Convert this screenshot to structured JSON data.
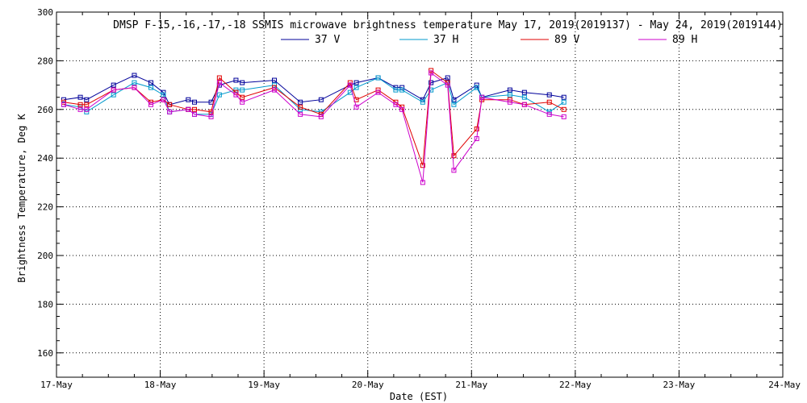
{
  "chart_data": {
    "type": "line",
    "title": "DMSP F-15,-16,-17,-18 SSMIS microwave brightness temperature May 17, 2019(2019137) - May 24, 2019(2019144)",
    "xlabel": "Date (EST)",
    "ylabel": "Brightness Temperature, Deg K",
    "xlim": [
      0,
      7
    ],
    "ylim": [
      150,
      300
    ],
    "grid": true,
    "legend_position": "top-center",
    "x_ticks": [
      {
        "value": 0,
        "label": "17-May"
      },
      {
        "value": 1,
        "label": "18-May"
      },
      {
        "value": 2,
        "label": "19-May"
      },
      {
        "value": 3,
        "label": "20-May"
      },
      {
        "value": 4,
        "label": "21-May"
      },
      {
        "value": 5,
        "label": "22-May"
      },
      {
        "value": 6,
        "label": "23-May"
      },
      {
        "value": 7,
        "label": "24-May"
      }
    ],
    "y_ticks": [
      {
        "value": 160,
        "label": "160"
      },
      {
        "value": 180,
        "label": "180"
      },
      {
        "value": 200,
        "label": "200"
      },
      {
        "value": 220,
        "label": "220"
      },
      {
        "value": 240,
        "label": "240"
      },
      {
        "value": 260,
        "label": "260"
      },
      {
        "value": 280,
        "label": "280"
      },
      {
        "value": 300,
        "label": "300"
      }
    ],
    "x": [
      0.07,
      0.23,
      0.29,
      0.55,
      0.75,
      0.91,
      1.03,
      1.09,
      1.27,
      1.33,
      1.49,
      1.57,
      1.73,
      1.79,
      2.1,
      2.35,
      2.55,
      2.83,
      2.89,
      3.1,
      3.27,
      3.33,
      3.53,
      3.61,
      3.77,
      3.83,
      4.05,
      4.1,
      4.37,
      4.51,
      4.75,
      4.89
    ],
    "series": [
      {
        "name": "37 V",
        "color": "#00009a",
        "values": [
          264,
          265,
          264,
          270,
          274,
          271,
          267,
          262,
          264,
          263,
          263,
          270,
          272,
          271,
          272,
          263,
          264,
          270,
          271,
          273,
          269,
          269,
          264,
          271,
          273,
          264,
          270,
          265,
          268,
          267,
          266,
          265
        ]
      },
      {
        "name": "37 H",
        "color": "#0099cc",
        "values": [
          262,
          261,
          259,
          266,
          271,
          269,
          266,
          259,
          260,
          258,
          258,
          266,
          268,
          268,
          270,
          260,
          259,
          267,
          269,
          273,
          268,
          268,
          263,
          268,
          271,
          262,
          269,
          265,
          266,
          265,
          259,
          263
        ]
      },
      {
        "name": "89 V",
        "color": "#e00000",
        "values": [
          263,
          262,
          262,
          268,
          269,
          263,
          264,
          262,
          260,
          260,
          259,
          273,
          267,
          265,
          269,
          261,
          258,
          271,
          264,
          268,
          263,
          261,
          237,
          276,
          271,
          241,
          252,
          264,
          264,
          262,
          263,
          260
        ]
      },
      {
        "name": "89 H",
        "color": "#cc00cc",
        "values": [
          262,
          260,
          260,
          268,
          269,
          262,
          264,
          259,
          260,
          258,
          257,
          271,
          266,
          263,
          268,
          258,
          257,
          270,
          261,
          267,
          262,
          260,
          230,
          275,
          270,
          235,
          248,
          265,
          263,
          262,
          258,
          257
        ]
      }
    ]
  }
}
